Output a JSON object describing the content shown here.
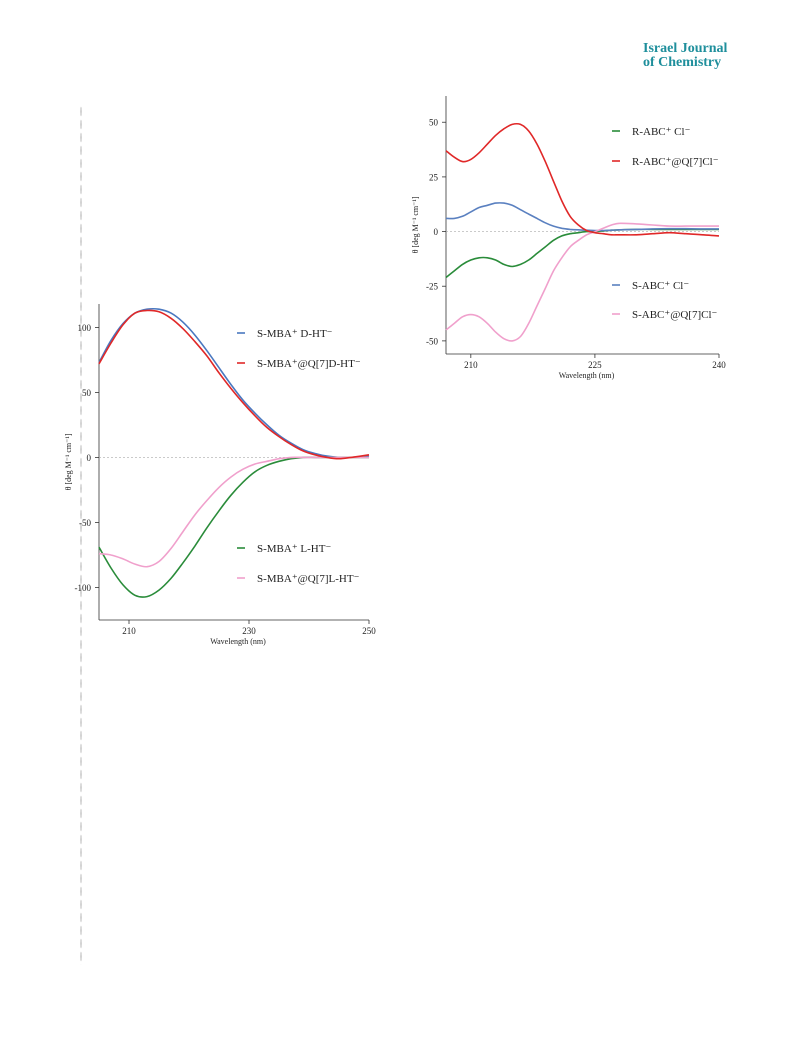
{
  "header": {
    "line1": "Israel Journal",
    "line2": "of Chemistry"
  },
  "chart_data": [
    {
      "type": "line",
      "ylabel": "θ [deg M⁻¹ cm⁻¹]",
      "xlabel": "Wavelength (nm)",
      "xlim": [
        205,
        250
      ],
      "ylim": [
        -125,
        118
      ],
      "xticks": [
        "210",
        "230",
        "250"
      ],
      "yticks": [
        "100",
        "50",
        "0",
        "-50",
        "-100"
      ],
      "series": [
        {
          "name": "S-MBA⁺ D-HT⁻",
          "color": "#4a78c0",
          "x": [
            205,
            207,
            209,
            211,
            213,
            215,
            217,
            219,
            221,
            223,
            225,
            227,
            229,
            231,
            233,
            235,
            237,
            239,
            241,
            243,
            245,
            247,
            250
          ],
          "y": [
            73,
            90,
            103,
            111,
            114,
            114,
            111,
            104,
            94,
            82,
            69,
            56,
            44,
            34,
            25,
            17,
            11,
            6,
            3,
            1,
            0,
            0,
            1
          ]
        },
        {
          "name": "S-MBA⁺@Q[7]D-HT⁻",
          "color": "#e02828",
          "x": [
            205,
            207,
            209,
            211,
            213,
            215,
            217,
            219,
            221,
            223,
            225,
            227,
            229,
            231,
            233,
            235,
            237,
            239,
            241,
            243,
            245,
            247,
            250
          ],
          "y": [
            72,
            88,
            102,
            111,
            113,
            112,
            107,
            99,
            89,
            78,
            65,
            53,
            42,
            32,
            23,
            16,
            10,
            5,
            2,
            0,
            -1,
            0,
            2
          ]
        },
        {
          "name": "S-MBA⁺ L-HT⁻",
          "color": "#2a8c3a",
          "x": [
            205,
            207,
            209,
            211,
            213,
            215,
            217,
            219,
            221,
            223,
            225,
            227,
            229,
            231,
            233,
            235,
            237,
            239,
            241,
            243,
            245,
            247,
            250
          ],
          "y": [
            -69,
            -85,
            -98,
            -106,
            -107,
            -102,
            -93,
            -81,
            -68,
            -54,
            -41,
            -29,
            -19,
            -11,
            -6,
            -3,
            -1,
            0,
            0,
            0,
            0,
            0,
            0
          ]
        },
        {
          "name": "S-MBA⁺@Q[7]L-HT⁻",
          "color": "#f0a0cc",
          "x": [
            205,
            207,
            209,
            211,
            213,
            215,
            217,
            219,
            221,
            223,
            225,
            227,
            229,
            231,
            233,
            235,
            237,
            239,
            241,
            243,
            245,
            247,
            250
          ],
          "y": [
            -74,
            -75,
            -78,
            -82,
            -84,
            -80,
            -70,
            -57,
            -44,
            -33,
            -23,
            -15,
            -9,
            -5,
            -3,
            -1,
            0,
            0,
            0,
            0,
            0,
            0,
            0
          ]
        }
      ]
    },
    {
      "type": "line",
      "ylabel": "θ [deg M⁻¹ cm⁻¹]",
      "xlabel": "Wavelength (nm)",
      "xlim": [
        207,
        240
      ],
      "ylim": [
        -56,
        62
      ],
      "xticks": [
        "210",
        "225",
        "240"
      ],
      "yticks": [
        "50",
        "25",
        "0",
        "-25",
        "-50"
      ],
      "series": [
        {
          "name": "R-ABC⁺ Cl⁻",
          "color": "#2a8c3a",
          "x": [
            207,
            208,
            209,
            210,
            211,
            212,
            213,
            214,
            215,
            216,
            217,
            218,
            219,
            220,
            221,
            222,
            223,
            224,
            225,
            226,
            227,
            228,
            230,
            232,
            234,
            236,
            238,
            240
          ],
          "y": [
            -21,
            -18,
            -15,
            -13,
            -12,
            -12,
            -13,
            -15,
            -16,
            -15,
            -13,
            -10,
            -7,
            -4,
            -2,
            -1,
            -0.5,
            0,
            0,
            0.3,
            0.6,
            0.8,
            1,
            1,
            1,
            1,
            1,
            1
          ]
        },
        {
          "name": "R-ABC⁺@Q[7]Cl⁻",
          "color": "#e02828",
          "x": [
            207,
            208,
            209,
            210,
            211,
            212,
            213,
            214,
            215,
            216,
            217,
            218,
            219,
            220,
            221,
            222,
            223,
            224,
            225,
            226,
            227,
            228,
            230,
            232,
            234,
            236,
            238,
            240
          ],
          "y": [
            37,
            34,
            32,
            33,
            36,
            40,
            44,
            47,
            49,
            49,
            46,
            40,
            32,
            23,
            14,
            7,
            3,
            0.5,
            -0.5,
            -1,
            -1.5,
            -1.5,
            -1.5,
            -1,
            -0.5,
            -1,
            -1.5,
            -2
          ]
        },
        {
          "name": "S-ABC⁺ Cl⁻",
          "color": "#5a80c0",
          "x": [
            207,
            208,
            209,
            210,
            211,
            212,
            213,
            214,
            215,
            216,
            217,
            218,
            219,
            220,
            221,
            222,
            223,
            224,
            225,
            226,
            227,
            228,
            230,
            232,
            234,
            236,
            238,
            240
          ],
          "y": [
            6,
            6,
            7,
            9,
            11,
            12,
            13,
            13,
            12,
            10,
            8,
            6,
            4,
            2.5,
            1.5,
            1,
            0.8,
            0.6,
            0.5,
            0.5,
            0.6,
            0.8,
            1,
            1.2,
            1.3,
            1.3,
            1.2,
            1.2
          ]
        },
        {
          "name": "S-ABC⁺@Q[7]Cl⁻",
          "color": "#f0a0cc",
          "x": [
            207,
            208,
            209,
            210,
            211,
            212,
            213,
            214,
            215,
            216,
            217,
            218,
            219,
            220,
            221,
            222,
            223,
            224,
            225,
            226,
            227,
            228,
            230,
            232,
            234,
            236,
            238,
            240
          ],
          "y": [
            -45,
            -42,
            -39,
            -38,
            -39,
            -42,
            -46,
            -49,
            -50,
            -48,
            -42,
            -34,
            -26,
            -18,
            -12,
            -7,
            -4,
            -1.5,
            0,
            1.5,
            3,
            3.8,
            3.5,
            3,
            2.5,
            2.5,
            2.5,
            2.5
          ]
        }
      ]
    }
  ]
}
